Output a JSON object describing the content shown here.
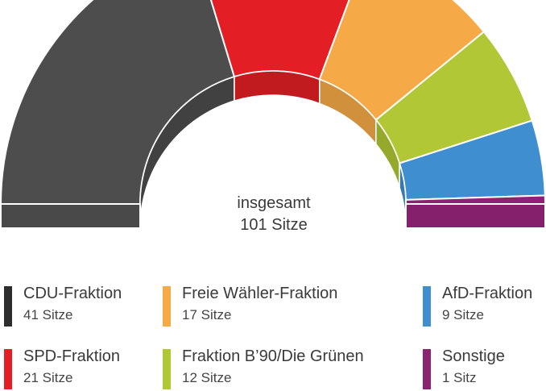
{
  "chart_data": {
    "type": "pie",
    "variant": "parliament-semicircle",
    "center_label": {
      "line1": "insgesamt",
      "line2": "101 Sitze"
    },
    "series": [
      {
        "name": "CDU-Fraktion",
        "value": 41,
        "seats_label": "41 Sitze",
        "color": "#4d4d4d"
      },
      {
        "name": "SPD-Fraktion",
        "value": 21,
        "seats_label": "21 Sitze",
        "color": "#e31e24"
      },
      {
        "name": "Freie Wähler-Fraktion",
        "value": 17,
        "seats_label": "17 Sitze",
        "color": "#f5a947"
      },
      {
        "name": "Fraktion B’90/Die Grünen",
        "value": 12,
        "seats_label": "12 Sitze",
        "color": "#b2c735"
      },
      {
        "name": "AfD-Fraktion",
        "value": 9,
        "seats_label": "9 Sitze",
        "color": "#3f8fd0"
      },
      {
        "name": "Sonstige",
        "value": 1,
        "seats_label": "1 Sitz",
        "color": "#8b2272"
      }
    ],
    "legend_placement": "bottom"
  },
  "legend_swatch_colors": {
    "CDU-Fraktion": "#2d2d2d"
  }
}
